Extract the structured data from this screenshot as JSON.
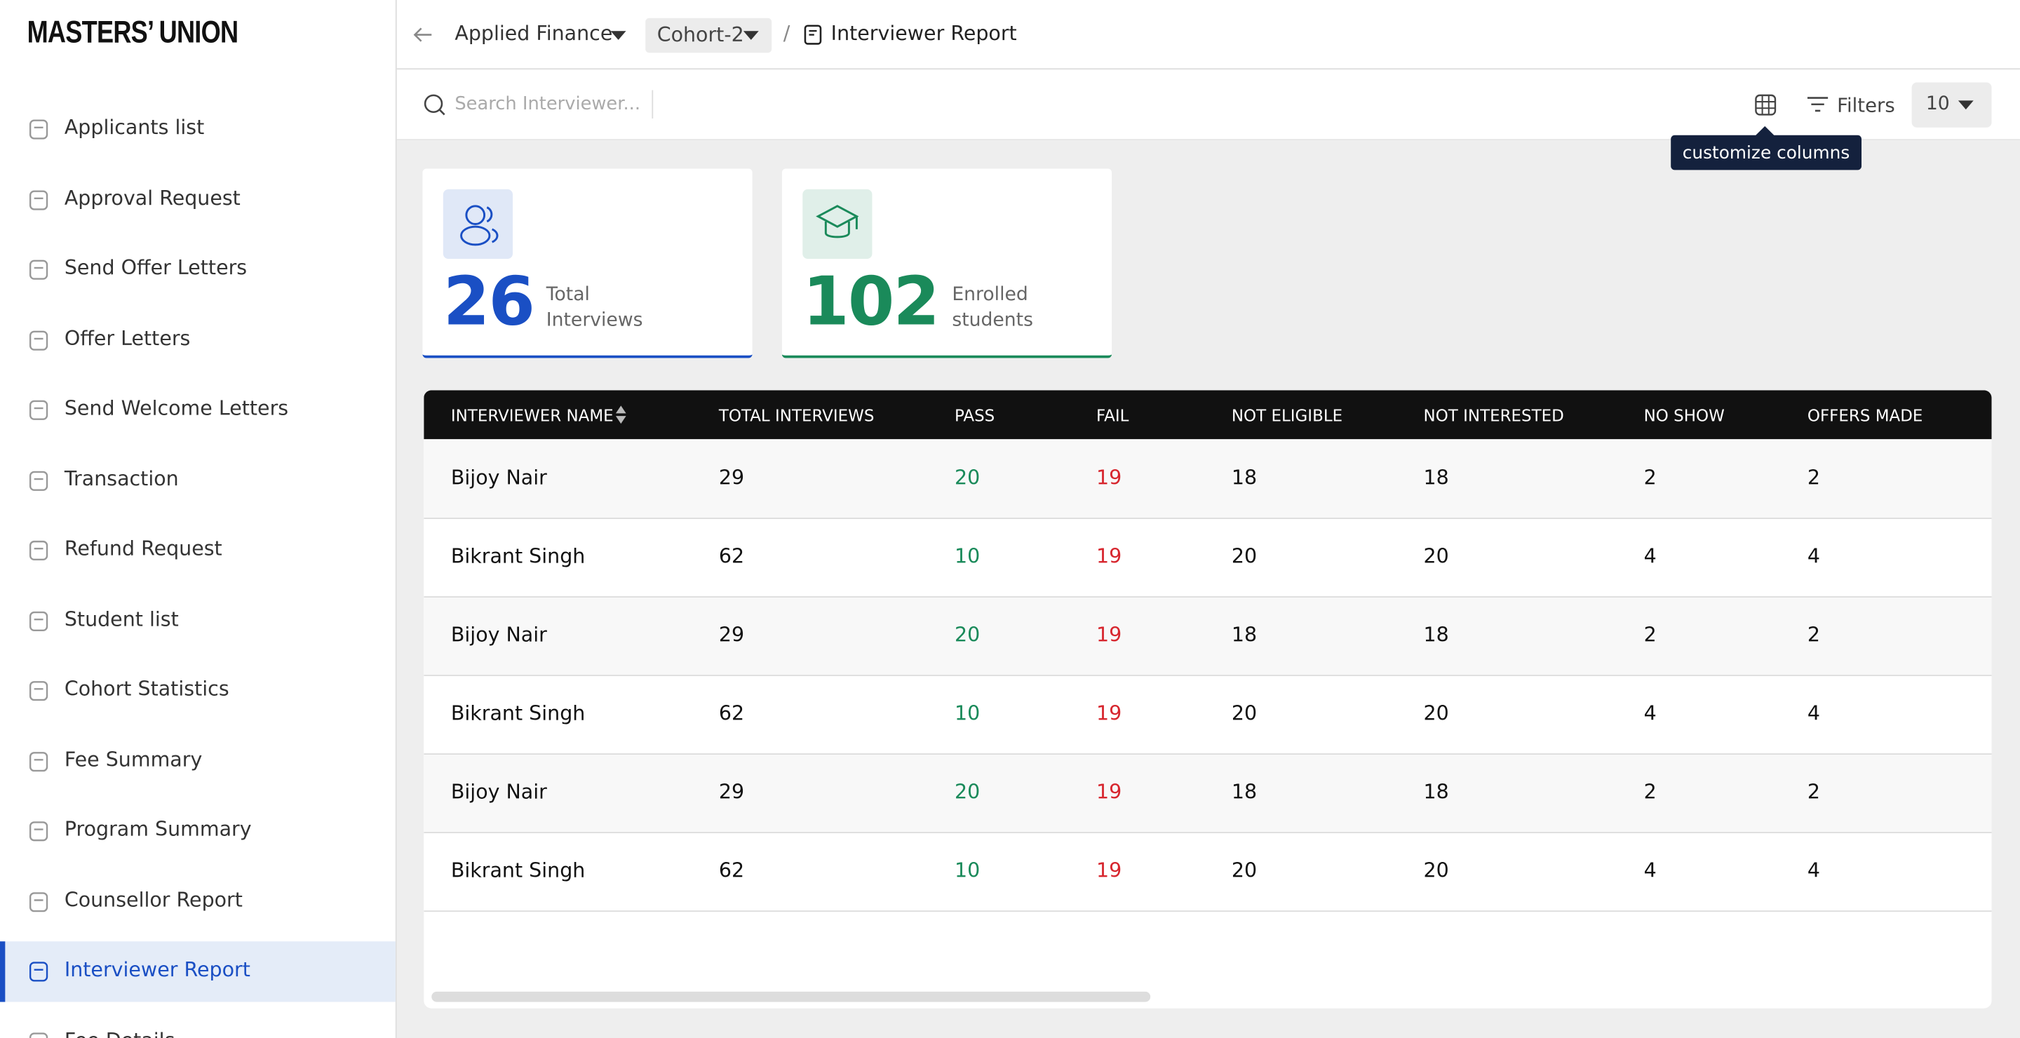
{
  "brand": "MASTERS’ UNION",
  "sidebar": {
    "items": [
      "Applicants list",
      "Approval Request",
      "Send Offer Letters",
      "Offer Letters",
      "Send Welcome Letters",
      "Transaction",
      "Refund Request",
      "Student list",
      "Cohort Statistics",
      "Fee Summary",
      "Program Summary",
      "Counsellor Report",
      "Interviewer Report",
      "Fee Details"
    ],
    "active": 12
  },
  "breadcrumb": {
    "program": "Applied Finance",
    "cohort": "Cohort-2",
    "separator": "/",
    "page": "Interviewer Report"
  },
  "toolbar": {
    "search_placeholder": "Search Interviewer...",
    "tooltip": "customize columns",
    "filters": "Filters",
    "page_size": 10
  },
  "stats": [
    {
      "value": 26,
      "label": "Total Interviews",
      "color": "#1a4fc4"
    },
    {
      "value": 102,
      "label": "Enrolled students",
      "color": "#1a8a5a"
    }
  ],
  "table": {
    "columns": [
      "INTERVIEWER NAME",
      "TOTAL INTERVIEWS",
      "PASS",
      "FAIL",
      "NOT ELIGIBLE",
      "NOT INTERESTED",
      "NO SHOW",
      "OFFERS MADE"
    ],
    "rows": [
      [
        "Bijoy Nair",
        29,
        20,
        19,
        18,
        18,
        2,
        2
      ],
      [
        "Bikrant Singh",
        62,
        10,
        19,
        20,
        20,
        4,
        4
      ],
      [
        "Bijoy Nair",
        29,
        20,
        19,
        18,
        18,
        2,
        2
      ],
      [
        "Bikrant Singh",
        62,
        10,
        19,
        20,
        20,
        4,
        4
      ],
      [
        "Bijoy Nair",
        29,
        20,
        19,
        18,
        18,
        2,
        2
      ],
      [
        "Bikrant Singh",
        62,
        10,
        19,
        20,
        20,
        4,
        4
      ]
    ]
  }
}
